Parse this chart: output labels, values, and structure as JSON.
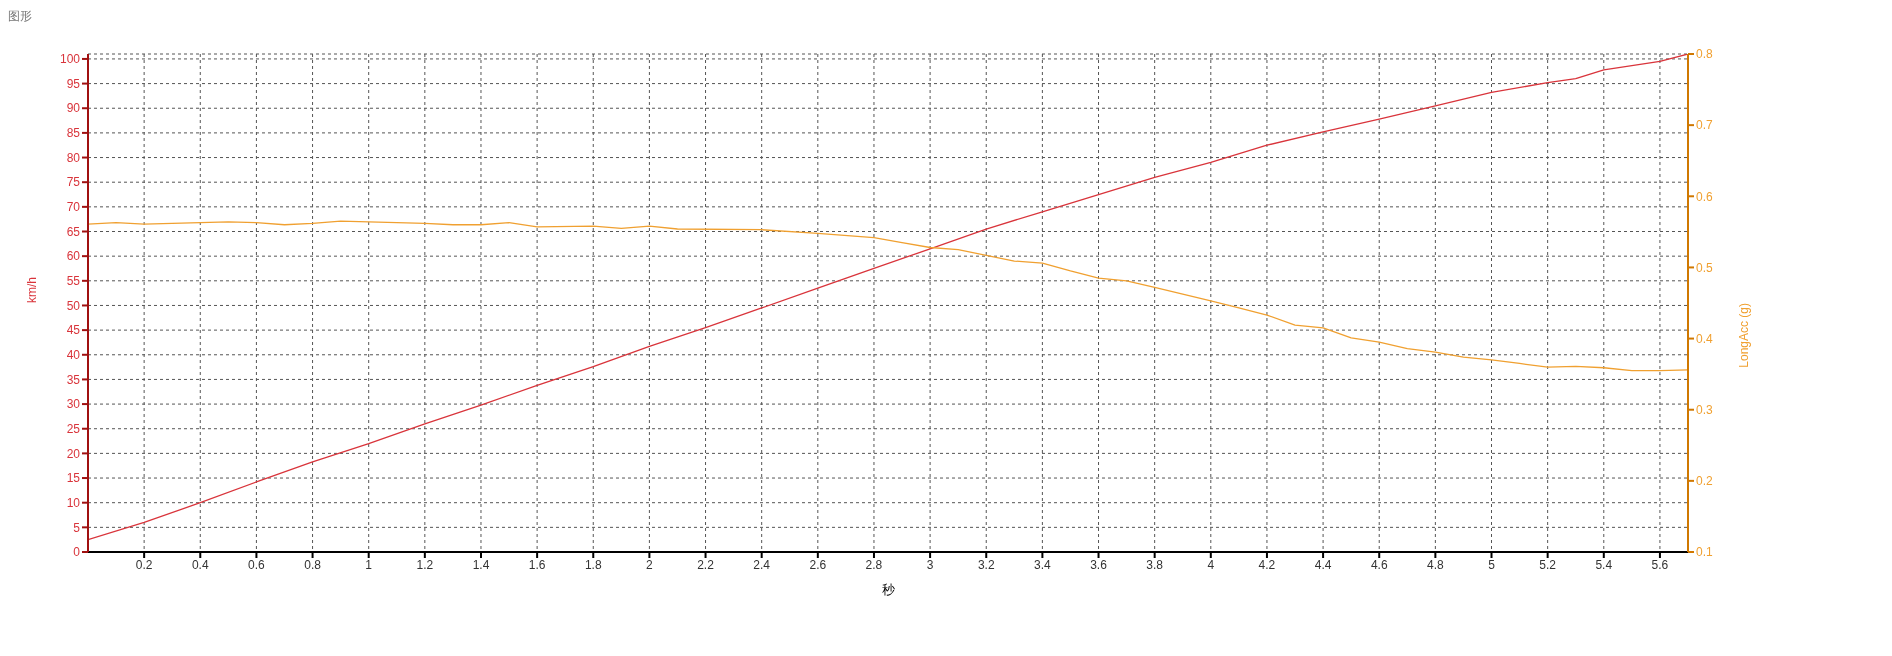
{
  "chart_data": {
    "type": "line",
    "title": "图形",
    "xlabel": "秒",
    "ylabel": "km/h",
    "y2label": "LongAcc (g)",
    "xlim": [
      0,
      5.7
    ],
    "xticks": [
      0.2,
      0.4,
      0.6,
      0.8,
      1,
      1.2,
      1.4,
      1.6,
      1.8,
      2,
      2.2,
      2.4,
      2.6,
      2.8,
      3,
      3.2,
      3.4,
      3.6,
      3.8,
      4,
      4.2,
      4.4,
      4.6,
      4.8,
      5,
      5.2,
      5.4,
      5.6
    ],
    "ylim": [
      0,
      101
    ],
    "yticks": [
      0,
      5,
      10,
      15,
      20,
      25,
      30,
      35,
      40,
      45,
      50,
      55,
      60,
      65,
      70,
      75,
      80,
      85,
      90,
      95,
      100
    ],
    "y2lim": [
      0.1,
      0.8
    ],
    "y2ticks": [
      0.1,
      0.2,
      0.3,
      0.4,
      0.5,
      0.6,
      0.7,
      0.8
    ],
    "grid": true,
    "series": [
      {
        "color": "#d9343b",
        "x": [
          0,
          0.2,
          0.4,
          0.6,
          0.8,
          1,
          1.2,
          1.4,
          1.6,
          1.8,
          2,
          2.2,
          2.4,
          2.6,
          2.8,
          3,
          3.2,
          3.4,
          3.6,
          3.8,
          4,
          4.2,
          4.4,
          4.6,
          4.8,
          5,
          5.2,
          5.3,
          5.4,
          5.6,
          5.7
        ],
        "values": [
          2.5,
          6,
          10,
          14.2,
          18.3,
          22,
          26,
          29.8,
          33.8,
          37.6,
          41.7,
          45.5,
          49.5,
          53.5,
          57.5,
          61.5,
          65.5,
          69,
          72.5,
          76,
          79,
          82.5,
          85.2,
          87.8,
          90.5,
          93.2,
          95.2,
          96,
          97.8,
          99.5,
          101
        ]
      },
      {
        "color": "#f0a030",
        "axis": "y2",
        "x": [
          0,
          0.1,
          0.2,
          0.4,
          0.5,
          0.6,
          0.7,
          0.8,
          0.9,
          1,
          1.2,
          1.3,
          1.4,
          1.5,
          1.6,
          1.8,
          1.9,
          2,
          2.1,
          2.4,
          2.6,
          2.8,
          2.9,
          3,
          3.1,
          3.2,
          3.3,
          3.4,
          3.5,
          3.6,
          3.7,
          3.8,
          4,
          4.1,
          4.2,
          4.3,
          4.4,
          4.5,
          4.6,
          4.7,
          4.8,
          4.9,
          5,
          5.1,
          5.2,
          5.3,
          5.4,
          5.5,
          5.6,
          5.7
        ],
        "values": [
          0.561,
          0.563,
          0.561,
          0.563,
          0.564,
          0.563,
          0.56,
          0.562,
          0.565,
          0.564,
          0.562,
          0.56,
          0.56,
          0.563,
          0.557,
          0.558,
          0.555,
          0.558,
          0.554,
          0.553,
          0.548,
          0.542,
          0.535,
          0.528,
          0.525,
          0.517,
          0.509,
          0.506,
          0.495,
          0.485,
          0.481,
          0.472,
          0.453,
          0.443,
          0.433,
          0.419,
          0.415,
          0.401,
          0.395,
          0.386,
          0.381,
          0.374,
          0.37,
          0.365,
          0.36,
          0.361,
          0.359,
          0.355,
          0.355,
          0.356
        ]
      }
    ]
  }
}
